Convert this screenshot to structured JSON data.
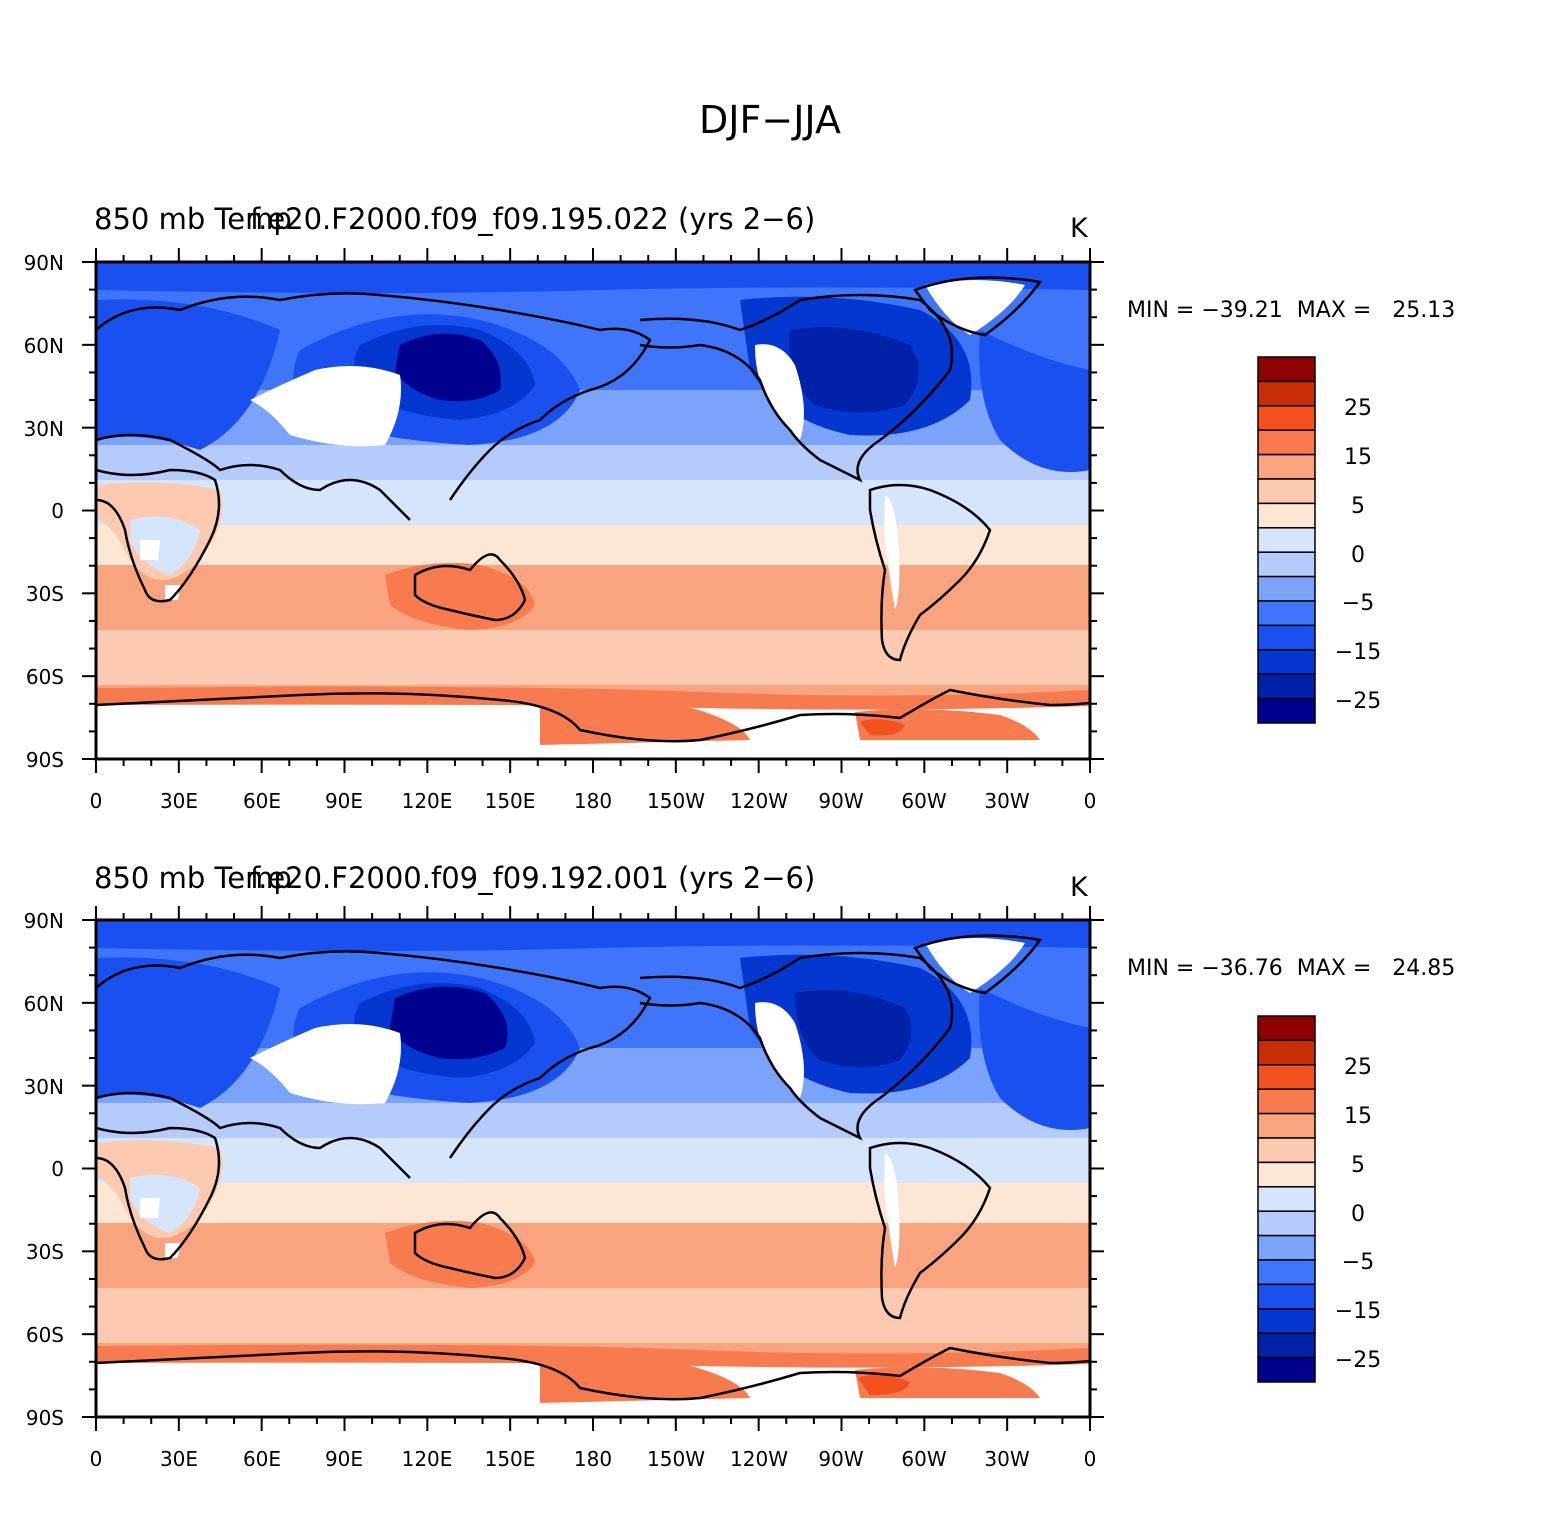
{
  "figure_title": "DJF−JJA",
  "colors": {
    "levels": [
      "#00008f",
      "#0022a8",
      "#0437cf",
      "#1a4ff0",
      "#3f75fa",
      "#7aa3fb",
      "#b4cbfb",
      "#d5e6fc",
      "#fde6d3",
      "#fccab0",
      "#f9a37f",
      "#f77b4f",
      "#f3521f",
      "#c72d06",
      "#8f0000"
    ],
    "land_mask": "#ffffff",
    "coast": "#000000"
  },
  "panels": [
    {
      "title_left": "850 mb Temp",
      "title_case": "f.e20.F2000.f09_f09.195.022 (yrs 2−6)",
      "units": "K",
      "stats": "MIN = −39.21  MAX =   25.13",
      "min": -39.21,
      "max": 25.13
    },
    {
      "title_left": "850 mb Temp",
      "title_case": "f.e20.F2000.f09_f09.192.001 (yrs 2−6)",
      "units": "K",
      "stats": "MIN = −36.76  MAX =   24.85",
      "min": -36.76,
      "max": 24.85
    }
  ],
  "axes": {
    "lat_labels": [
      "90N",
      "60N",
      "30N",
      "0",
      "30S",
      "60S",
      "90S"
    ],
    "lon_labels": [
      "0",
      "30E",
      "60E",
      "90E",
      "120E",
      "150E",
      "180",
      "150W",
      "120W",
      "90W",
      "60W",
      "30W",
      "0"
    ]
  },
  "colorbar_labels": [
    "25",
    "15",
    "5",
    "0",
    "−5",
    "−15",
    "−25"
  ]
}
